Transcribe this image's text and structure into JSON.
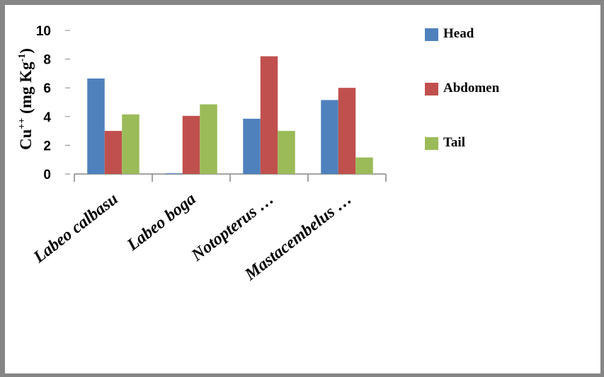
{
  "chart_data": {
    "type": "bar",
    "categories": [
      "Labeo calbasu",
      "Labeo boga",
      "Notopterus …",
      "Mastacembelus …"
    ],
    "series": [
      {
        "name": "Head",
        "color": "#4F81BD",
        "values": [
          6.65,
          0.05,
          3.85,
          5.15
        ]
      },
      {
        "name": "Abdomen",
        "color": "#C0504D",
        "values": [
          3.0,
          4.05,
          8.2,
          6.0
        ]
      },
      {
        "name": "Tail",
        "color": "#9BBB59",
        "values": [
          4.15,
          4.85,
          3.0,
          1.15
        ]
      }
    ],
    "ylabel": {
      "base": "Cu",
      "sup1": "++",
      "mid": " (mg Kg",
      "sup2": "-1",
      "end": ")"
    },
    "ylim": [
      0,
      10
    ],
    "yticks": [
      "0",
      "2",
      "4",
      "6",
      "8",
      "10"
    ],
    "legend_position": "right"
  }
}
